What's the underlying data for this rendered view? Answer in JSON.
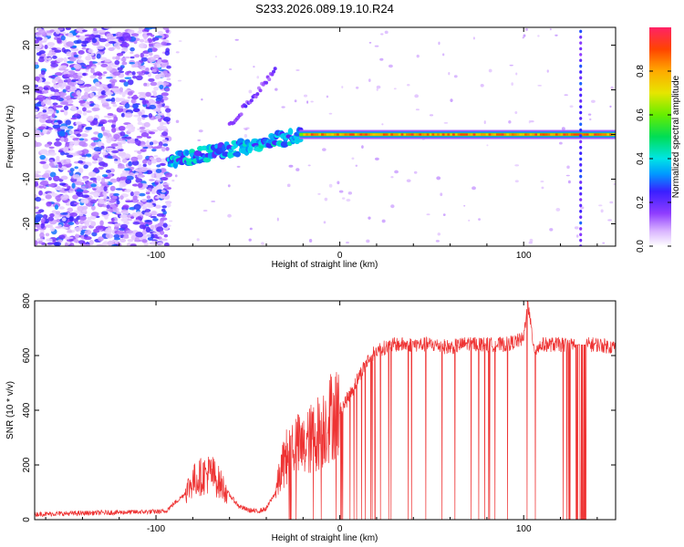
{
  "title": "S233.2026.089.19.10.R24",
  "chart_data": [
    {
      "type": "heatmap",
      "name": "spectrogram",
      "xlabel": "Height of straight line (km)",
      "ylabel": "Frequency (Hz)",
      "xlim": [
        -166,
        150
      ],
      "ylim": [
        -25,
        24
      ],
      "xticks": [
        -100,
        0,
        100
      ],
      "yticks": [
        -20,
        -10,
        0,
        10,
        20
      ],
      "noise_region_km": [
        -166,
        -93
      ],
      "signal_line_hz": 0,
      "tone_spike_km": 131,
      "colorbar": {
        "label": "Normalized spectral amplitude",
        "range": [
          0,
          1
        ],
        "ticks": [
          0.0,
          0.2,
          0.4,
          0.6,
          0.8
        ]
      }
    },
    {
      "type": "line",
      "name": "snr",
      "xlabel": "Height of straight line (km)",
      "ylabel": "SNR (10 * v/v)",
      "xlim": [
        -166,
        150
      ],
      "ylim": [
        0,
        800
      ],
      "xticks": [
        -100,
        0,
        100
      ],
      "yticks": [
        0,
        200,
        400,
        600,
        800
      ],
      "color": "#ee3333",
      "series": [
        {
          "name": "SNR envelope",
          "x": [
            -166,
            -130,
            -95,
            -90,
            -85,
            -80,
            -75,
            -70,
            -65,
            -60,
            -55,
            -50,
            -45,
            -40,
            -35,
            -30,
            -25,
            -20,
            -15,
            -10,
            -5,
            0,
            5,
            10,
            15,
            20,
            25,
            30,
            40,
            50,
            60,
            70,
            80,
            90,
            100,
            102,
            104,
            106,
            110,
            120,
            130,
            140,
            150
          ],
          "values": [
            20,
            25,
            30,
            60,
            90,
            140,
            160,
            170,
            130,
            90,
            50,
            35,
            30,
            40,
            100,
            220,
            280,
            260,
            300,
            330,
            380,
            400,
            450,
            520,
            580,
            620,
            630,
            640,
            640,
            640,
            630,
            645,
            640,
            640,
            660,
            800,
            700,
            620,
            640,
            640,
            640,
            640,
            630
          ]
        }
      ]
    }
  ]
}
